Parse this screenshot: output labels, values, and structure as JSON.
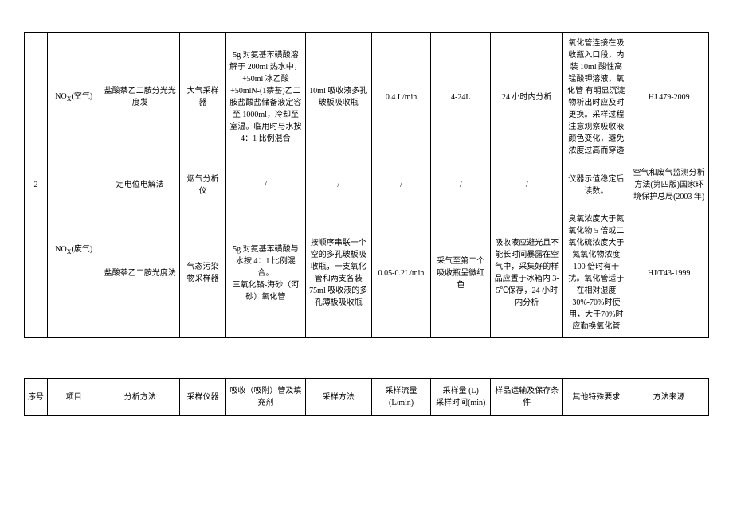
{
  "main_table": {
    "row_index": "2",
    "r1": {
      "item": "NOₓ(空气)",
      "method": "盐酸萘乙二胺分光光度发",
      "instrument": "大气采样器",
      "fill": "5g 对氨基苯磺酸溶解于 200ml 热水中，+50ml 冰乙酸+50mlN-(1萘基)乙二胺盐酸盐储备液定容至 1000ml，冷却至室温。临用时与水按 4：1 比例混合",
      "sampling_method": "10ml 吸收液多孔玻板吸收瓶",
      "flow": "0.4 L/min",
      "volume_time": "4-24L",
      "transport": "24 小时内分析",
      "special": "氧化管连接在吸收瓶入口段，内装 10ml 酸性高锰酸钾溶液，氧化管 有明显沉淀物析出时应及时更换。采样过程注意观察吸收液颜色变化，避免浓度过高而穿透",
      "source": "HJ 479-2009"
    },
    "r2": {
      "item": "",
      "method": "定电位电解法",
      "instrument": "烟气分析仪",
      "fill": "/",
      "sampling_method": "/",
      "flow": "/",
      "volume_time": "/",
      "transport": "/",
      "special": "仪器示值稳定后读数。",
      "source": "空气和废气监测分析方法(第四版)国家环境保护总局(2003 年)"
    },
    "r3": {
      "item": "NOₓ(废气)",
      "method": "盐酸萘乙二胺光度法",
      "instrument": "气态污染物采样器",
      "fill": "5g 对氨基苯磺酸与水按 4：1 比例混合。\n三氧化铬-海砂（河砂）氧化管",
      "sampling_method": "按顺序串联一个空的多孔玻板吸收瓶，一支氧化管和两支各装 75ml 吸收液的多孔薄板吸收瓶",
      "flow": "0.05-0.2L/min",
      "volume_time": "采气至第二个吸收瓶呈微红色",
      "transport": "吸收液应避光且不能长时间暴露在空气中，采集好的样品应置于冰箱内 3-5℃保存，24 小时内分析",
      "special": "臭氧浓度大于氮氧化物 5 倍或二氧化硫浓度大于氮氧化物浓度 100 倍时有干扰。氧化管适于在相对湿度 30%-70%时使用，大于70%时应勤换氧化管",
      "source": "HJ/T43-1999"
    }
  },
  "header_table": {
    "c0": "序号",
    "c1": "项目",
    "c2": "分析方法",
    "c3": "采样仪器",
    "c4": "吸收（吸附）管及填充剂",
    "c5": "采样方法",
    "c6": "采样流量(L/min)",
    "c7": "采样量 (L)\n采样时间(min)",
    "c8": "样品运输及保存条件",
    "c9": "其他特殊要求",
    "c10": "方法来源"
  }
}
